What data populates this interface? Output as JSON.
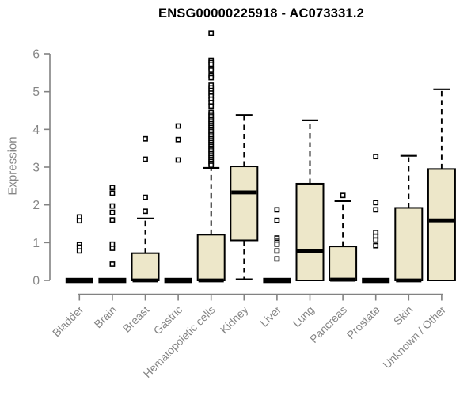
{
  "chart_data": {
    "type": "boxplot",
    "title": "ENSG00000225918 - AC073331.2",
    "ylabel": "Expression",
    "xlabel": "",
    "ylim": [
      0,
      6
    ],
    "yticks": [
      0,
      1,
      2,
      3,
      4,
      5,
      6
    ],
    "grid": false,
    "legend": "none",
    "categories": [
      "Bladder",
      "Brain",
      "Breast",
      "Gastric",
      "Hematopoietic cells",
      "Kidney",
      "Liver",
      "Lung",
      "Pancreas",
      "Prostate",
      "Skin",
      "Unknown / Other"
    ],
    "boxes": [
      {
        "category": "Bladder",
        "q1": 0,
        "median": 0,
        "q3": 0,
        "whisker_low": 0,
        "whisker_high": 0,
        "flat": true,
        "outliers": [
          1.68,
          1.58,
          0.95,
          0.88,
          0.78
        ]
      },
      {
        "category": "Brain",
        "q1": 0,
        "median": 0,
        "q3": 0,
        "whisker_low": 0,
        "whisker_high": 0,
        "flat": true,
        "outliers": [
          2.46,
          2.31,
          1.97,
          1.8,
          1.6,
          0.96,
          0.85,
          0.43
        ]
      },
      {
        "category": "Breast",
        "q1": 0,
        "median": 0,
        "q3": 0.72,
        "whisker_low": 0,
        "whisker_high": 1.64,
        "flat": false,
        "outliers": [
          3.75,
          3.21,
          2.2,
          1.83
        ]
      },
      {
        "category": "Gastric",
        "q1": 0,
        "median": 0,
        "q3": 0,
        "whisker_low": 0,
        "whisker_high": 0,
        "flat": true,
        "outliers": [
          4.09,
          3.73,
          3.19
        ]
      },
      {
        "category": "Hematopoietic cells",
        "q1": 0,
        "median": 0,
        "q3": 1.21,
        "whisker_low": 0,
        "whisker_high": 2.98,
        "flat": false,
        "outliers": [
          6.55,
          5.83,
          5.77,
          5.71,
          5.62,
          5.57,
          5.43,
          5.37,
          5.17,
          5.1,
          5.03,
          4.96,
          4.88,
          4.8,
          4.71,
          4.62,
          4.45,
          4.4,
          4.35,
          4.3,
          4.25,
          4.2,
          4.15,
          4.1,
          4.05,
          4.0,
          3.95,
          3.9,
          3.85,
          3.8,
          3.75,
          3.7,
          3.65,
          3.6,
          3.55,
          3.5,
          3.45,
          3.4,
          3.35,
          3.3,
          3.25,
          3.2,
          3.15,
          3.1,
          3.05
        ]
      },
      {
        "category": "Kidney",
        "q1": 1.06,
        "median": 2.33,
        "q3": 3.02,
        "whisker_low": 0.03,
        "whisker_high": 4.38,
        "flat": false,
        "outliers": []
      },
      {
        "category": "Liver",
        "q1": 0,
        "median": 0,
        "q3": 0,
        "whisker_low": 0,
        "whisker_high": 0,
        "flat": true,
        "outliers": [
          1.87,
          1.59,
          1.12,
          1.06,
          1.01,
          0.96,
          0.78,
          0.57
        ]
      },
      {
        "category": "Lung",
        "q1": 0,
        "median": 0.78,
        "q3": 2.56,
        "whisker_low": 0,
        "whisker_high": 4.24,
        "flat": false,
        "outliers": []
      },
      {
        "category": "Pancreas",
        "q1": 0,
        "median": 0.02,
        "q3": 0.9,
        "whisker_low": 0,
        "whisker_high": 2.1,
        "flat": false,
        "outliers": [
          2.25
        ]
      },
      {
        "category": "Prostate",
        "q1": 0,
        "median": 0,
        "q3": 0,
        "whisker_low": 0,
        "whisker_high": 0,
        "flat": true,
        "outliers": [
          3.28,
          2.06,
          1.87,
          1.27,
          1.17,
          1.07,
          0.92
        ]
      },
      {
        "category": "Skin",
        "q1": 0,
        "median": 0,
        "q3": 1.92,
        "whisker_low": 0,
        "whisker_high": 3.3,
        "flat": false,
        "outliers": []
      },
      {
        "category": "Unknown / Other",
        "q1": 0,
        "median": 1.59,
        "q3": 2.95,
        "whisker_low": 0,
        "whisker_high": 5.06,
        "flat": false,
        "outliers": []
      }
    ],
    "colors": {
      "box_fill": "#EDE7C9",
      "box_stroke": "#000000",
      "median": "#000000",
      "whisker": "#000000",
      "outlier_fill": "#ffffff",
      "outlier_stroke": "#000000",
      "axis": "#828282",
      "axis_text": "#858585",
      "title_text": "#000000",
      "background": "#ffffff"
    }
  }
}
